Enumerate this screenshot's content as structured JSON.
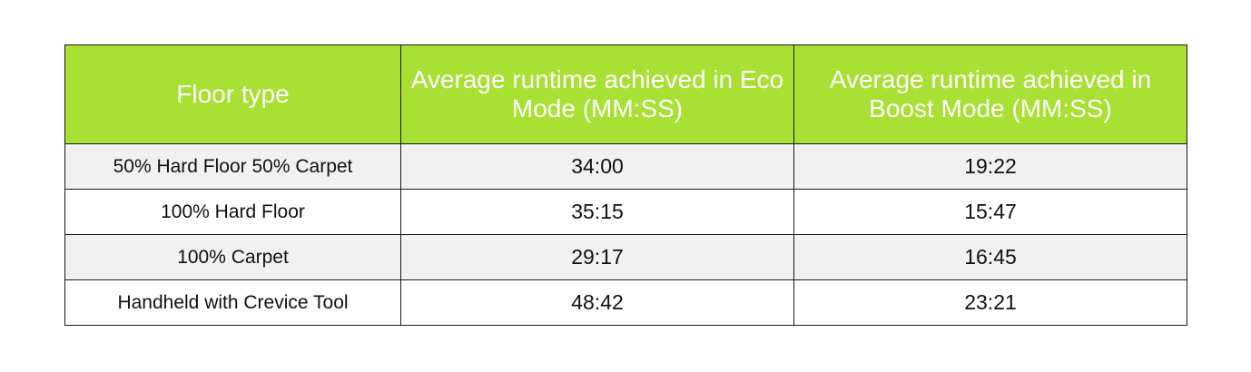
{
  "colors": {
    "header_bg": "#a8e033",
    "header_text": "#ffffff",
    "row_alt_bg": "#f1f1f1",
    "border": "#1a1a1a"
  },
  "table": {
    "headers": [
      "Floor type",
      "Average runtime achieved in Eco Mode (MM:SS)",
      "Average runtime achieved in Boost Mode (MM:SS)"
    ],
    "rows": [
      {
        "floor": "50% Hard Floor 50% Carpet",
        "eco": "34:00",
        "boost": "19:22"
      },
      {
        "floor": "100% Hard Floor",
        "eco": "35:15",
        "boost": "15:47"
      },
      {
        "floor": "100% Carpet",
        "eco": "29:17",
        "boost": "16:45"
      },
      {
        "floor": "Handheld with Crevice Tool",
        "eco": "48:42",
        "boost": "23:21"
      }
    ]
  }
}
